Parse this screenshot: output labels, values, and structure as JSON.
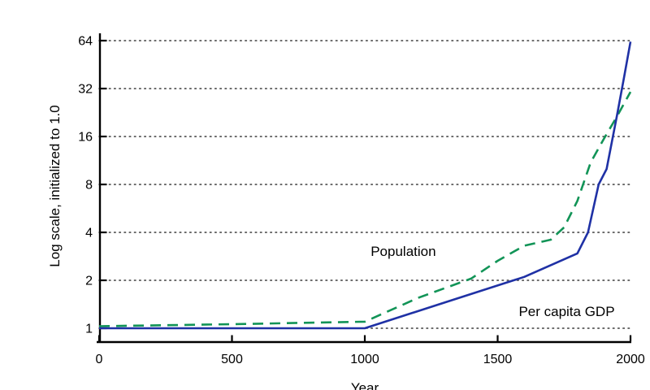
{
  "chart_data": {
    "type": "line",
    "title": "",
    "xlabel": "Year",
    "ylabel": "Log scale, initialized to 1.0",
    "x_ticks": [
      0,
      500,
      1000,
      1500,
      2000
    ],
    "y_ticks": [
      1,
      2,
      4,
      8,
      16,
      32,
      64
    ],
    "y_scale": "log2",
    "xlim": [
      0,
      2000
    ],
    "ylim_log": [
      1,
      64
    ],
    "grid": "horizontal-dotted",
    "legend_position": "inline-annotations",
    "series": [
      {
        "name": "Population",
        "style": "dashed",
        "color": "#129457",
        "label_anchor": {
          "year": 1145,
          "value": 3.05
        },
        "points": [
          [
            0,
            1.03
          ],
          [
            500,
            1.06
          ],
          [
            1000,
            1.1
          ],
          [
            1200,
            1.55
          ],
          [
            1400,
            2.05
          ],
          [
            1500,
            2.65
          ],
          [
            1600,
            3.3
          ],
          [
            1700,
            3.6
          ],
          [
            1750,
            4.3
          ],
          [
            1800,
            6.3
          ],
          [
            1850,
            11.0
          ],
          [
            1900,
            15.5
          ],
          [
            1950,
            21.5
          ],
          [
            2000,
            30.5
          ]
        ]
      },
      {
        "name": "Per capita GDP",
        "style": "solid",
        "color": "#1f31a5",
        "label_anchor": {
          "year": 1760,
          "value": 1.28
        },
        "points": [
          [
            0,
            1.0
          ],
          [
            500,
            1.0
          ],
          [
            1000,
            1.0
          ],
          [
            1300,
            1.45
          ],
          [
            1600,
            2.1
          ],
          [
            1800,
            2.95
          ],
          [
            1840,
            4.0
          ],
          [
            1880,
            8.0
          ],
          [
            1910,
            10.0
          ],
          [
            1950,
            22
          ],
          [
            1975,
            37
          ],
          [
            2000,
            63
          ]
        ]
      }
    ]
  },
  "colors": {
    "axis": "#000000",
    "grid_dots": "#3c3c3c",
    "background": "#ffffff"
  }
}
